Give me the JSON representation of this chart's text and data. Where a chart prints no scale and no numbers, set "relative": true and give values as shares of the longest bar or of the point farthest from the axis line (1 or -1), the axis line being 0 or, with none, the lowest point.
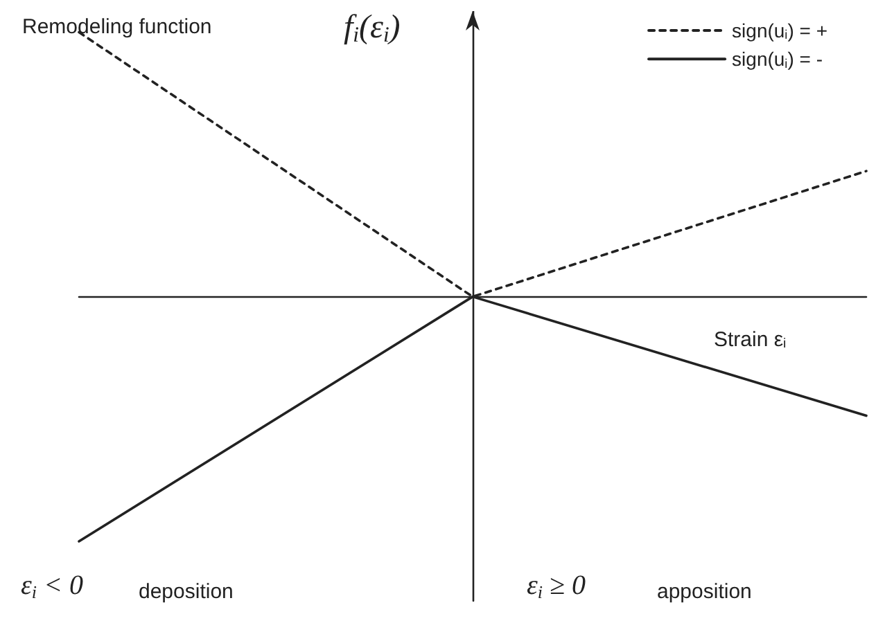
{
  "chart_data": {
    "type": "line",
    "title": "Remodeling function",
    "xlabel": "Strain ε$_{i}$",
    "ylabel": "f$_{i}$(ε$_{i}$)",
    "relative": true,
    "categories": [
      null,
      null,
      null
    ],
    "legend": "top right",
    "marker": "none",
    "grid": false,
    "series": [
      {
        "name": "sign(u$_{i}$) = +",
        "color": "#222222",
        "line_style": "dotted",
        "values": [
          1,
          0,
          0.475
        ]
      },
      {
        "name": "sign(u$_{i}$) = -",
        "color": "#222222",
        "line_style": "solid",
        "values": [
          -0.925,
          0,
          -0.45
        ]
      }
    ],
    "annotations": [
      "ε$_{i}$ < 0",
      "deposition",
      "ε$_{i}$ ≥ 0",
      "apposition"
    ]
  }
}
